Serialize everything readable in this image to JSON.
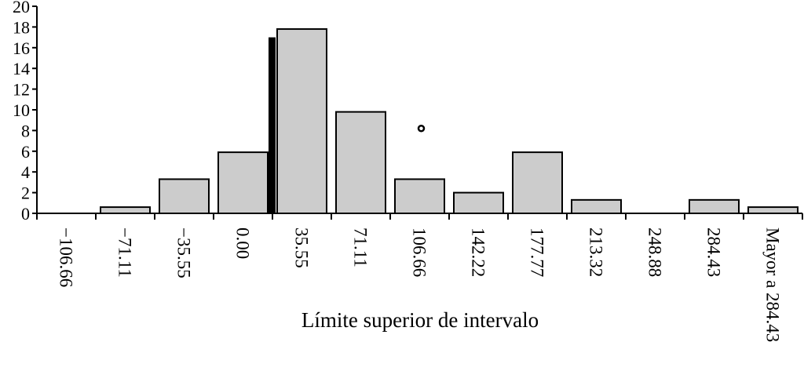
{
  "chart_data": {
    "type": "bar",
    "title": "",
    "xlabel": "Límite superior de intervalo",
    "ylabel": "",
    "ylim": [
      0,
      20
    ],
    "yticks": [
      "0",
      "2",
      "4",
      "6",
      "8",
      "10",
      "12",
      "14",
      "16",
      "18",
      "20"
    ],
    "categories": [
      "−106.66",
      "−71.11",
      "−35.55",
      "0.00",
      "35.55",
      "71.11",
      "106.66",
      "142.22",
      "177.77",
      "213.32",
      "248.88",
      "284.43",
      "Mayor a 284.43"
    ],
    "values": [
      0,
      0.6,
      3.3,
      5.9,
      17.8,
      9.8,
      3.3,
      2.0,
      5.9,
      1.3,
      0,
      1.3,
      0.6
    ],
    "grid": false,
    "colors": {
      "bar_fill": "#cccccc",
      "bar_stroke": "#000000",
      "marker": "#000000"
    },
    "annotations": {
      "marker_line_value": 17.0,
      "marker_line_category_index": 3,
      "circle_value": 8.2,
      "circle_category_index": 6
    }
  }
}
